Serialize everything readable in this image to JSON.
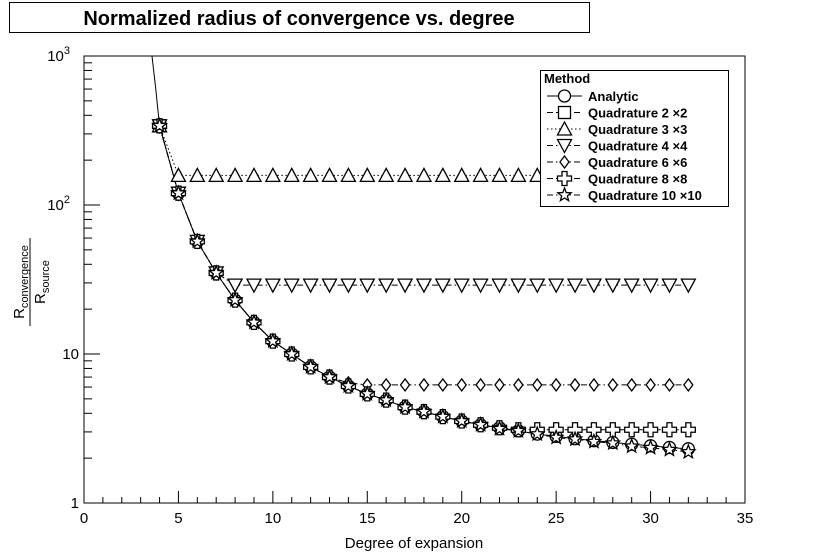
{
  "chart_data": {
    "type": "scatter",
    "title": "Normalized radius of convergence vs. degree",
    "xlabel": "Degree of expansion",
    "ylabel": {
      "main": "R",
      "num_sub": "convergence",
      "den_sub": "source"
    },
    "xlim": [
      0,
      35
    ],
    "ylim": [
      1,
      1000
    ],
    "yscale": "log",
    "x_ticks": [
      0,
      5,
      10,
      15,
      20,
      25,
      30,
      35
    ],
    "y_ticks": [
      {
        "value": 1,
        "label": "1"
      },
      {
        "value": 10,
        "label": "10"
      },
      {
        "value": 100,
        "label": "10",
        "sup": "2"
      },
      {
        "value": 1000,
        "label": "10",
        "sup": "3"
      }
    ],
    "grid": false,
    "legend": {
      "title": "Method",
      "position": "top-right"
    },
    "series": [
      {
        "name": "Analytic",
        "marker": "circle",
        "line": "solid",
        "x": [
          4,
          5,
          6,
          7,
          8,
          9,
          10,
          11,
          12,
          13,
          14,
          15,
          16,
          17,
          18,
          19,
          20,
          21,
          22,
          23,
          24,
          25,
          26,
          27,
          28,
          29,
          30,
          31,
          32
        ],
        "y": [
          340,
          120,
          57,
          35,
          23,
          16.3,
          12.2,
          10,
          8.2,
          7,
          6.1,
          5.4,
          4.9,
          4.4,
          4.1,
          3.8,
          3.55,
          3.35,
          3.2,
          3.05,
          2.9,
          2.8,
          2.7,
          2.62,
          2.55,
          2.48,
          2.42,
          2.36,
          2.31
        ]
      },
      {
        "name": "Quadrature 2 ×2",
        "marker": "square",
        "line": "dashed",
        "x": [
          4
        ],
        "y": [
          340
        ]
      },
      {
        "name": "Quadrature 3 ×3",
        "marker": "triangle-up",
        "line": "dotted",
        "x": [
          4,
          5,
          6,
          7,
          8,
          9,
          10,
          11,
          12,
          13,
          14,
          15,
          16,
          17,
          18,
          19,
          20,
          21,
          22,
          23,
          24,
          25,
          26,
          27,
          28,
          29,
          30,
          31,
          32
        ],
        "y": [
          340,
          158,
          158,
          158,
          158,
          158,
          158,
          158,
          158,
          158,
          158,
          158,
          158,
          158,
          158,
          158,
          158,
          158,
          158,
          158,
          158,
          158,
          158,
          158,
          158,
          158,
          158,
          158,
          158
        ]
      },
      {
        "name": "Quadrature 4 ×4",
        "marker": "triangle-down",
        "line": "dashdot",
        "x": [
          4,
          5,
          6,
          7,
          8,
          9,
          10,
          11,
          12,
          13,
          14,
          15,
          16,
          17,
          18,
          19,
          20,
          21,
          22,
          23,
          24,
          25,
          26,
          27,
          28,
          29,
          30,
          31,
          32
        ],
        "y": [
          340,
          120,
          57,
          35,
          29,
          29,
          29,
          29,
          29,
          29,
          29,
          29,
          29,
          29,
          29,
          29,
          29,
          29,
          29,
          29,
          29,
          29,
          29,
          29,
          29,
          29,
          29,
          29,
          29
        ]
      },
      {
        "name": "Quadrature 6 ×6",
        "marker": "diamond",
        "line": "dashdot",
        "x": [
          4,
          5,
          6,
          7,
          8,
          9,
          10,
          11,
          12,
          13,
          14,
          15,
          16,
          17,
          18,
          19,
          20,
          21,
          22,
          23,
          24,
          25,
          26,
          27,
          28,
          29,
          30,
          31,
          32
        ],
        "y": [
          340,
          120,
          57,
          35,
          23,
          16.3,
          12.2,
          10,
          8.2,
          7,
          6.4,
          6.2,
          6.2,
          6.2,
          6.2,
          6.2,
          6.2,
          6.2,
          6.2,
          6.2,
          6.2,
          6.2,
          6.2,
          6.2,
          6.2,
          6.2,
          6.2,
          6.2,
          6.2
        ]
      },
      {
        "name": "Quadrature 8 ×8",
        "marker": "cross",
        "line": "dashed",
        "x": [
          4,
          5,
          6,
          7,
          8,
          9,
          10,
          11,
          12,
          13,
          14,
          15,
          16,
          17,
          18,
          19,
          20,
          21,
          22,
          23,
          24,
          25,
          26,
          27,
          28,
          29,
          30,
          31,
          32
        ],
        "y": [
          340,
          120,
          57,
          35,
          23,
          16.3,
          12.2,
          10,
          8.2,
          7,
          6.1,
          5.4,
          4.9,
          4.4,
          4.1,
          3.8,
          3.55,
          3.35,
          3.2,
          3.1,
          3.1,
          3.1,
          3.1,
          3.1,
          3.1,
          3.1,
          3.1,
          3.1,
          3.1
        ]
      },
      {
        "name": "Quadrature 10 ×10",
        "marker": "star",
        "line": "dashdot",
        "x": [
          4,
          5,
          6,
          7,
          8,
          9,
          10,
          11,
          12,
          13,
          14,
          15,
          16,
          17,
          18,
          19,
          20,
          21,
          22,
          23,
          24,
          25,
          26,
          27,
          28,
          29,
          30,
          31,
          32
        ],
        "y": [
          340,
          120,
          57,
          35,
          23,
          16.3,
          12.2,
          10,
          8.2,
          7,
          6.1,
          5.4,
          4.9,
          4.4,
          4.1,
          3.8,
          3.55,
          3.35,
          3.15,
          3.05,
          2.9,
          2.75,
          2.68,
          2.58,
          2.52,
          2.4,
          2.35,
          2.28,
          2.2
        ]
      }
    ]
  },
  "analytic_curve_extra": {
    "x": [
      3.6,
      3.8
    ],
    "y": [
      1000,
      600
    ]
  }
}
